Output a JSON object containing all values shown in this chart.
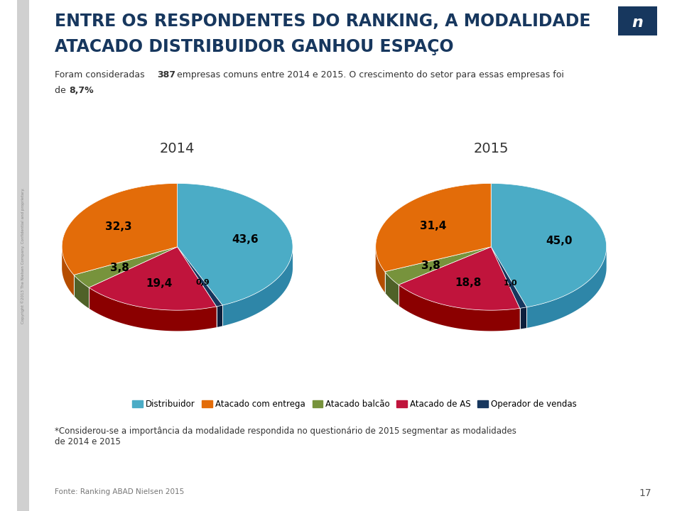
{
  "title_line1": "ENTRE OS RESPONDENTES DO RANKING, A MODALIDADE",
  "title_line2": "ATACADO DISTRIBUIDOR GANHOU ESPAÇO",
  "year2014": "2014",
  "year2015": "2015",
  "values_2014": [
    43.6,
    32.3,
    3.8,
    19.4,
    0.9
  ],
  "values_2015": [
    45.0,
    31.4,
    3.8,
    18.8,
    1.0
  ],
  "labels_2014": [
    "43,6",
    "32,3",
    "3,8",
    "19,4",
    "0,9"
  ],
  "labels_2015": [
    "45,0",
    "31,4",
    "3,8",
    "18,8",
    "1,0"
  ],
  "colors": [
    "#4BACC6",
    "#E36C09",
    "#77933C",
    "#C0143C",
    "#17375E"
  ],
  "colors_dark": [
    "#2E86A8",
    "#B54D00",
    "#4F6128",
    "#8B0000",
    "#0D1F3C"
  ],
  "legend_labels": [
    "Distribuidor",
    "Atacado com entrega",
    "Atacado balcão",
    "Atacado de AS",
    "Operador de vendas"
  ],
  "footnote": "*Considerou-se a importância da modalidade respondida no questionário de 2015 segmentar as modalidades\nde 2014 e 2015",
  "source": "Fonte: Ranking ABAD Nielsen 2015",
  "bg_color": "#FFFFFF",
  "title_color": "#17375E",
  "page_number": "17",
  "pie_order": [
    0,
    4,
    3,
    2,
    1
  ],
  "depth": 0.18,
  "yscale": 0.55
}
